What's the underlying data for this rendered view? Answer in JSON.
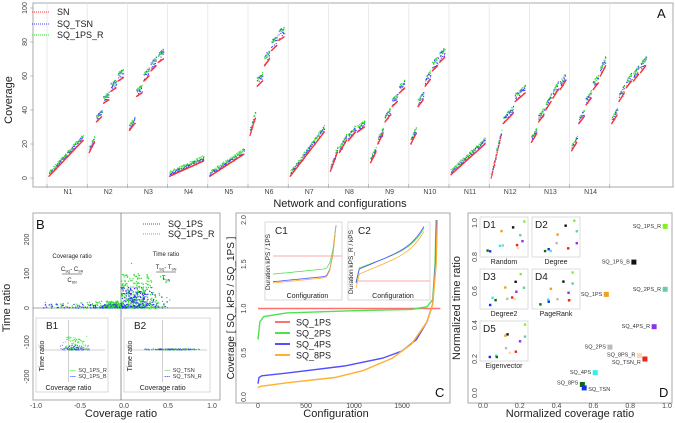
{
  "chart_data": [
    {
      "panel": "A",
      "type": "scatter",
      "xlabel": "Network and configurations",
      "ylabel": "Coverage",
      "ylim": [
        0,
        100
      ],
      "yticks": [
        "0",
        "20",
        "40",
        "60",
        "80",
        "100"
      ],
      "categories": [
        "N1",
        "N2",
        "N3",
        "N4",
        "N5",
        "N6",
        "N7",
        "N8",
        "N9",
        "N10",
        "N11",
        "N12",
        "N13",
        "N14",
        ""
      ],
      "legend": [
        "SN",
        "SQ_TSN",
        "SQ_1PS_R"
      ],
      "legend_placement": "top-left",
      "series_colors": {
        "SN": "#ff3030",
        "SQ_TSN": "#4040ff",
        "SQ_1PS_R": "#30e030"
      },
      "sn_segments_by_network": [
        [
          [
            1,
            22
          ]
        ],
        [
          [
            15,
            21
          ],
          [
            33,
            36
          ],
          [
            44,
            46
          ],
          [
            51,
            53
          ],
          [
            57,
            59
          ]
        ],
        [
          [
            28,
            32
          ],
          [
            48,
            50
          ],
          [
            57,
            60
          ],
          [
            63,
            66
          ],
          [
            68,
            70
          ]
        ],
        [
          [
            1,
            10
          ]
        ],
        [
          [
            1,
            14
          ]
        ],
        [
          [
            25,
            35
          ],
          [
            54,
            57
          ],
          [
            66,
            70
          ],
          [
            75,
            78
          ],
          [
            81,
            83
          ]
        ],
        [
          [
            1,
            27
          ]
        ],
        [
          [
            4,
            15
          ],
          [
            15,
            22
          ],
          [
            22,
            27
          ],
          [
            27,
            30
          ]
        ],
        [
          [
            9,
            15
          ],
          [
            20,
            26
          ],
          [
            33,
            37
          ],
          [
            42,
            45
          ],
          [
            50,
            53
          ]
        ],
        [
          [
            20,
            26
          ],
          [
            42,
            46
          ],
          [
            54,
            58
          ],
          [
            63,
            66
          ],
          [
            68,
            71
          ]
        ],
        [
          [
            2,
            20
          ]
        ],
        [
          [
            0,
            25
          ],
          [
            32,
            38
          ],
          [
            45,
            50
          ]
        ],
        [
          [
            21,
            26
          ],
          [
            33,
            37
          ],
          [
            40,
            45
          ],
          [
            47,
            52
          ],
          [
            52,
            57
          ]
        ],
        [
          [
            16,
            21
          ],
          [
            32,
            36
          ],
          [
            43,
            47
          ],
          [
            52,
            56
          ],
          [
            60,
            66
          ]
        ],
        [
          [
            32,
            37
          ],
          [
            45,
            50
          ],
          [
            53,
            57
          ],
          [
            57,
            61
          ],
          [
            62,
            66
          ]
        ]
      ],
      "sq_offset_range": [
        0,
        6
      ]
    },
    {
      "panel": "B",
      "type": "scatter",
      "xlabel": "Coverage ratio",
      "ylabel": "Time ratio",
      "xlim": [
        -1.0,
        1.0
      ],
      "ylim": [
        -250,
        250
      ],
      "xticks": [
        "-1.0",
        "-0.5",
        "0.0",
        "0.5",
        "1.0"
      ],
      "yticks": [
        "-200",
        "-100",
        "0",
        "100",
        "200"
      ],
      "legend": [
        "SQ_1PS",
        "SQ_1PS_R"
      ],
      "legend_placement": "top-right",
      "annotation_left": {
        "title": "Coverage ratio",
        "num_a": "C",
        "num_a_sub": "SQ",
        "num_b": "- C",
        "num_b_sub": "SN",
        "den": "C",
        "den_sub": "SN"
      },
      "annotation_right": {
        "title": "Time ratio",
        "num_a": "T",
        "num_a_sub": "SQ",
        "num_b": "- T",
        "num_b_sub": "SN",
        "den": "T",
        "den_sub": "SN"
      },
      "cluster": {
        "coverage_center": 0.1,
        "time_center": 10,
        "max_time": 130
      },
      "insets": [
        {
          "label": "B1",
          "xlabel": "Coverage ratio",
          "ylabel": "Time ratio",
          "legend": [
            "SQ_1PS_R",
            "SQ_1PS_B"
          ]
        },
        {
          "label": "B2",
          "xlabel": "Coverage ratio",
          "ylabel": "Time ratio",
          "legend": [
            "SQ_TSN",
            "SQ_TSN_R"
          ]
        }
      ]
    },
    {
      "panel": "C",
      "type": "line",
      "xlabel": "Configuration",
      "ylabel": "Coverage [ SQ_kPS / SQ_1PS ]",
      "xlim": [
        0,
        1900
      ],
      "ylim": [
        0,
        2.0
      ],
      "xticks": [
        "0",
        "500",
        "1000",
        "1500"
      ],
      "yticks": [
        "0.0",
        "0.5",
        "1.0",
        "1.5",
        "2.0"
      ],
      "legend_placement": "center-left",
      "series": [
        {
          "name": "SQ_1PS",
          "color": "#ff7070",
          "points": [
            [
              0,
              1.0
            ],
            [
              1900,
              1.0
            ]
          ]
        },
        {
          "name": "SQ_2PS",
          "color": "#50e050",
          "points": [
            [
              0,
              0.65
            ],
            [
              20,
              0.85
            ],
            [
              60,
              0.91
            ],
            [
              300,
              0.95
            ],
            [
              1000,
              0.975
            ],
            [
              1600,
              0.99
            ],
            [
              1760,
              1.02
            ],
            [
              1820,
              1.1
            ],
            [
              1845,
              1.5
            ],
            [
              1855,
              2.0
            ]
          ]
        },
        {
          "name": "SQ_4PS",
          "color": "#5050ff",
          "points": [
            [
              0,
              0.15
            ],
            [
              10,
              0.22
            ],
            [
              40,
              0.24
            ],
            [
              300,
              0.27
            ],
            [
              900,
              0.35
            ],
            [
              1300,
              0.44
            ],
            [
              1500,
              0.52
            ],
            [
              1650,
              0.65
            ],
            [
              1760,
              0.85
            ],
            [
              1820,
              1.05
            ],
            [
              1850,
              1.5
            ],
            [
              1862,
              2.0
            ]
          ]
        },
        {
          "name": "SQ_8PS",
          "color": "#ffb030",
          "points": [
            [
              0,
              0.1
            ],
            [
              20,
              0.12
            ],
            [
              300,
              0.16
            ],
            [
              800,
              0.22
            ],
            [
              1100,
              0.3
            ],
            [
              1400,
              0.44
            ],
            [
              1600,
              0.6
            ],
            [
              1760,
              0.85
            ],
            [
              1820,
              1.05
            ],
            [
              1855,
              1.5
            ],
            [
              1868,
              2.0
            ]
          ]
        }
      ],
      "insets": [
        {
          "label": "C1",
          "xlabel": "Configuration",
          "ylabel": "Duration kPS / 1PS"
        },
        {
          "label": "C2",
          "xlabel": "Configuration",
          "ylabel": "Duration kPS_R / kPS"
        }
      ]
    },
    {
      "panel": "D",
      "type": "scatter",
      "xlabel": "Normalized coverage ratio",
      "ylabel": "Normalized time ratio",
      "xlim": [
        0,
        1.0
      ],
      "ylim": [
        0,
        1.0
      ],
      "xticks": [
        "0.0",
        "0.2",
        "0.4",
        "0.6",
        "0.8",
        "1.0"
      ],
      "yticks": [
        "0.0",
        "0.2",
        "0.4",
        "0.6",
        "0.8",
        "1.0"
      ],
      "points": [
        {
          "name": "SQ_1PS_R",
          "x": 0.99,
          "y": 0.98,
          "color": "#88ee22"
        },
        {
          "name": "SQ_1PS_B",
          "x": 0.82,
          "y": 0.77,
          "color": "#111111"
        },
        {
          "name": "SQ_1PS",
          "x": 0.67,
          "y": 0.58,
          "color": "#f0a020"
        },
        {
          "name": "SQ_2PS_R",
          "x": 0.99,
          "y": 0.61,
          "color": "#66ccaa"
        },
        {
          "name": "SQ_4PS_R",
          "x": 0.93,
          "y": 0.39,
          "color": "#8833ee"
        },
        {
          "name": "SQ_2PS",
          "x": 0.69,
          "y": 0.27,
          "color": "#bbbbbb"
        },
        {
          "name": "SQ_8PS_R",
          "x": 0.85,
          "y": 0.22,
          "color": "#ffd8a8"
        },
        {
          "name": "SQ_TSN_R",
          "x": 0.88,
          "y": 0.2,
          "color": "#ee2020"
        },
        {
          "name": "SQ_4PS",
          "x": 0.61,
          "y": 0.12,
          "color": "#33eeee"
        },
        {
          "name": "SQ_8PS",
          "x": 0.54,
          "y": 0.05,
          "color": "#116611"
        },
        {
          "name": "SQ_TSN",
          "x": 0.55,
          "y": 0.03,
          "color": "#1133ee"
        }
      ],
      "insets": [
        {
          "label": "D1",
          "caption": "Random"
        },
        {
          "label": "D2",
          "caption": "Degree"
        },
        {
          "label": "D3",
          "caption": "Degree2"
        },
        {
          "label": "D4",
          "caption": "PageRank"
        },
        {
          "label": "D5",
          "caption": "Eigenvector"
        }
      ]
    }
  ]
}
